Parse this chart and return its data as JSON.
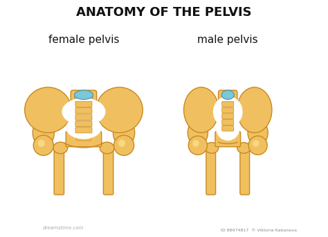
{
  "title": "ANATOMY OF THE PELVIS",
  "label_female": "female pelvis",
  "label_male": "male pelvis",
  "bg_color": "#ffffff",
  "bone_color": "#f0c060",
  "bone_dark": "#e0a830",
  "bone_light": "#f8d880",
  "bone_outline": "#c88820",
  "blue_color": "#7ac8d8",
  "white_space": "#ffffff",
  "watermark": "dreamstime.com",
  "watermark2": "ID 88974817  © Viktoria Kabanova",
  "title_fontsize": 13,
  "label_fontsize": 11
}
